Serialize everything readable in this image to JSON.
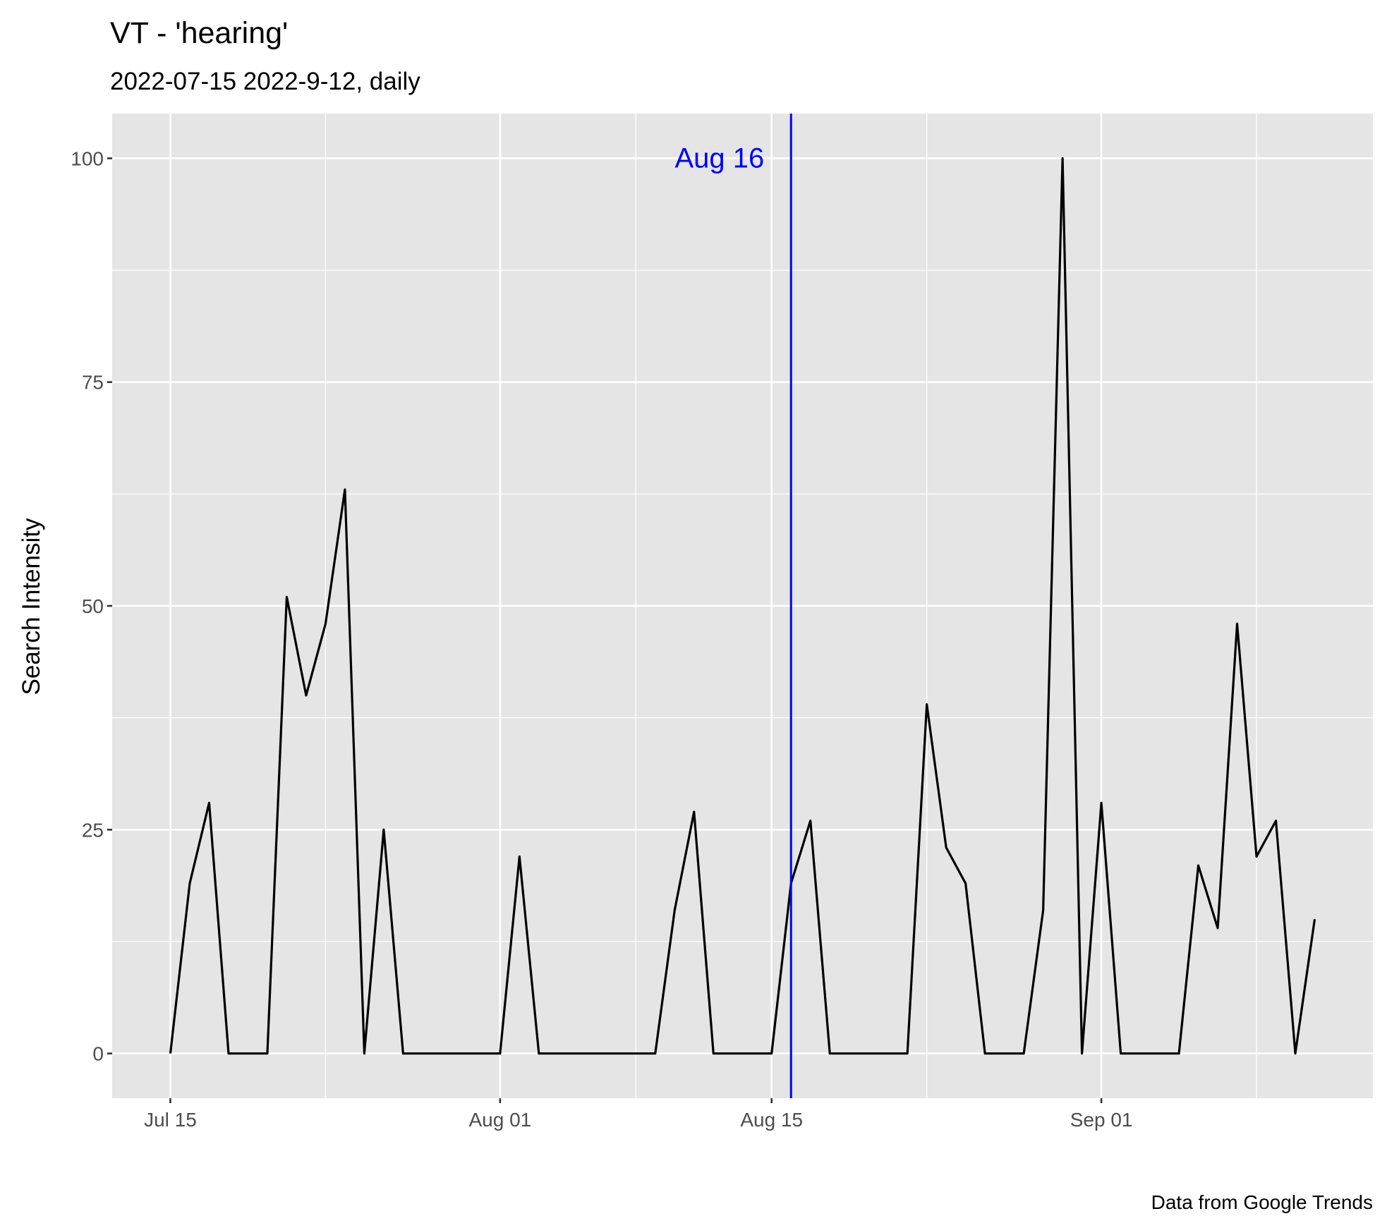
{
  "chart_data": {
    "type": "line",
    "title": "VT  - 'hearing'",
    "subtitle": "2022-07-15 2022-9-12, daily",
    "ylabel": "Search Intensity",
    "xlabel": "",
    "caption": "Data from Google Trends",
    "x_start": "2022-07-15",
    "x_end": "2022-09-12",
    "xlim": [
      "2022-07-12",
      "2022-09-15"
    ],
    "ylim": [
      -5,
      105
    ],
    "x_ticks": [
      {
        "date": "2022-07-15",
        "label": "Jul 15"
      },
      {
        "date": "2022-08-01",
        "label": "Aug 01"
      },
      {
        "date": "2022-08-15",
        "label": "Aug 15"
      },
      {
        "date": "2022-09-01",
        "label": "Sep 01"
      }
    ],
    "x_minor_gridlines": [
      "2022-07-23",
      "2022-08-08",
      "2022-08-23",
      "2022-09-09"
    ],
    "y_ticks": [
      0,
      25,
      50,
      75,
      100
    ],
    "y_minor_gridlines": [
      12.5,
      37.5,
      62.5,
      87.5
    ],
    "grid": true,
    "panel_background": "#e5e5e5",
    "grid_color": "#ffffff",
    "series": [
      {
        "color": "#000000",
        "x": [
          "2022-07-15",
          "2022-07-16",
          "2022-07-17",
          "2022-07-18",
          "2022-07-19",
          "2022-07-20",
          "2022-07-21",
          "2022-07-22",
          "2022-07-23",
          "2022-07-24",
          "2022-07-25",
          "2022-07-26",
          "2022-07-27",
          "2022-07-28",
          "2022-07-29",
          "2022-07-30",
          "2022-07-31",
          "2022-08-01",
          "2022-08-02",
          "2022-08-03",
          "2022-08-04",
          "2022-08-05",
          "2022-08-06",
          "2022-08-07",
          "2022-08-08",
          "2022-08-09",
          "2022-08-10",
          "2022-08-11",
          "2022-08-12",
          "2022-08-13",
          "2022-08-14",
          "2022-08-15",
          "2022-08-16",
          "2022-08-17",
          "2022-08-18",
          "2022-08-19",
          "2022-08-20",
          "2022-08-21",
          "2022-08-22",
          "2022-08-23",
          "2022-08-24",
          "2022-08-25",
          "2022-08-26",
          "2022-08-27",
          "2022-08-28",
          "2022-08-29",
          "2022-08-30",
          "2022-08-31",
          "2022-09-01",
          "2022-09-02",
          "2022-09-03",
          "2022-09-04",
          "2022-09-05",
          "2022-09-06",
          "2022-09-07",
          "2022-09-08",
          "2022-09-09",
          "2022-09-10",
          "2022-09-11",
          "2022-09-12"
        ],
        "y": [
          0,
          19,
          28,
          0,
          0,
          0,
          51,
          40,
          48,
          63,
          0,
          25,
          0,
          0,
          0,
          0,
          0,
          0,
          22,
          0,
          0,
          0,
          0,
          0,
          0,
          0,
          16,
          27,
          0,
          0,
          0,
          0,
          19,
          26,
          0,
          0,
          0,
          0,
          0,
          39,
          23,
          19,
          0,
          0,
          0,
          16,
          100,
          0,
          28,
          0,
          0,
          0,
          0,
          21,
          14,
          48,
          22,
          26,
          0,
          15
        ]
      }
    ],
    "annotations": [
      {
        "type": "vline",
        "x": "2022-08-16",
        "color": "#0000ff",
        "label": "Aug 16",
        "label_y": 100
      }
    ]
  }
}
